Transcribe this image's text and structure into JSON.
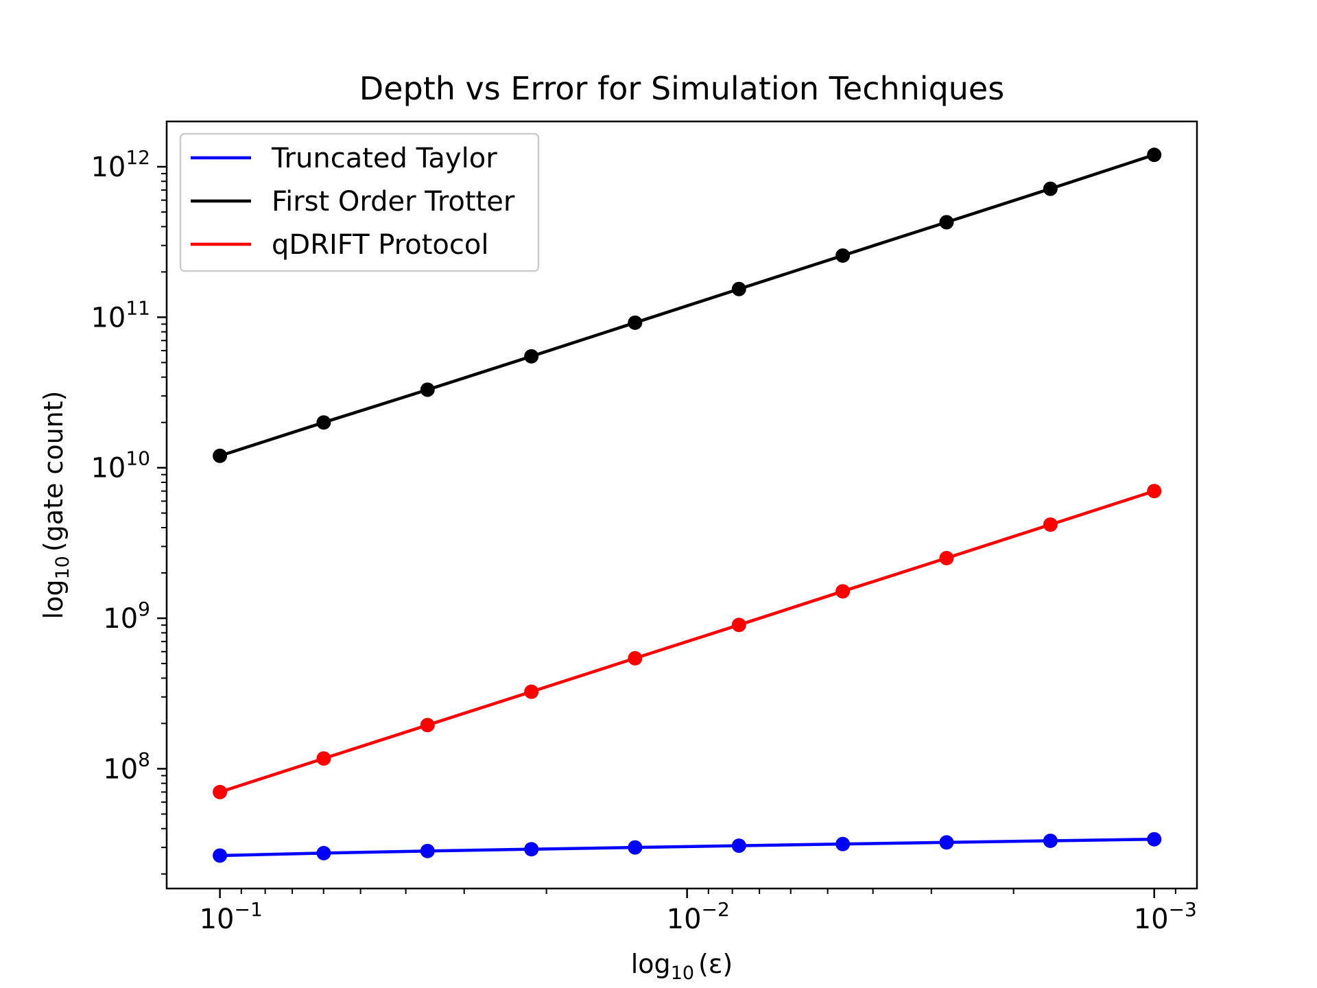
{
  "chart_data": {
    "type": "line",
    "title": "Depth vs Error for Simulation Techniques",
    "xlabel": {
      "base": "log",
      "sub": "10",
      "arg": "(ε)"
    },
    "ylabel": {
      "base": "log",
      "sub": "10",
      "arg": "(gate count)"
    },
    "x_scale": "log",
    "y_scale": "log",
    "x_inverted": true,
    "xlim": [
      0.13,
      0.00081
    ],
    "ylim": [
      16000000,
      2000000000000
    ],
    "x_ticks": [
      {
        "value": 0.1,
        "base": "10",
        "exp": "−1"
      },
      {
        "value": 0.01,
        "base": "10",
        "exp": "−2"
      },
      {
        "value": 0.001,
        "base": "10",
        "exp": "−3"
      }
    ],
    "y_ticks": [
      {
        "value": 100000000,
        "base": "10",
        "exp": "8"
      },
      {
        "value": 1000000000,
        "base": "10",
        "exp": "9"
      },
      {
        "value": 10000000000,
        "base": "10",
        "exp": "10"
      },
      {
        "value": 100000000000,
        "base": "10",
        "exp": "11"
      },
      {
        "value": 1000000000000,
        "base": "10",
        "exp": "12"
      }
    ],
    "x": [
      0.1,
      0.05995,
      0.03594,
      0.02154,
      0.01292,
      0.007743,
      0.004642,
      0.002783,
      0.001668,
      0.001
    ],
    "series": [
      {
        "name": "Truncated Taylor",
        "color": "#0000ff",
        "values": [
          26500000,
          27500000,
          28400000,
          29200000,
          30000000,
          30800000,
          31600000,
          32400000,
          33200000,
          34000000
        ]
      },
      {
        "name": "First Order Trotter",
        "color": "#000000",
        "values": [
          12000000000,
          20000000000,
          33000000000,
          55000000000,
          92000000000,
          154000000000,
          257000000000,
          428000000000,
          714000000000,
          1200000000000
        ]
      },
      {
        "name": "qDRIFT Protocol",
        "color": "#ff0000",
        "values": [
          70000000,
          117000000,
          195000000,
          325000000,
          542000000,
          903000000,
          1510000000,
          2510000000,
          4190000000,
          7000000000
        ]
      }
    ],
    "legend_position": "top-left",
    "grid": false
  }
}
